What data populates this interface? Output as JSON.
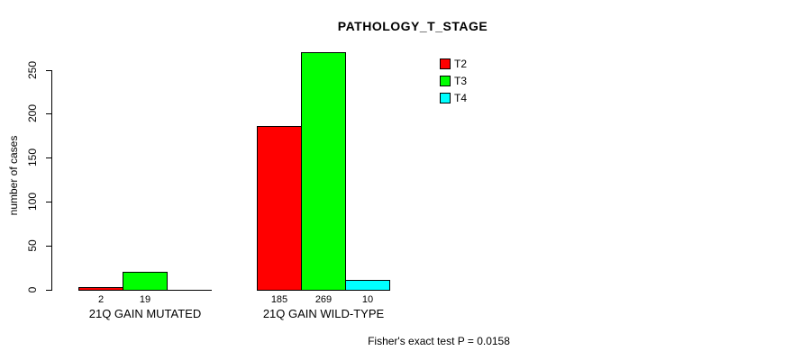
{
  "chart_data": {
    "type": "bar",
    "title": "PATHOLOGY_T_STAGE",
    "xlabel": "",
    "ylabel": "number of cases",
    "ylim": [
      0,
      269
    ],
    "yticks": [
      0,
      50,
      100,
      150,
      200,
      250
    ],
    "grid": false,
    "categories": [
      "21Q GAIN MUTATED",
      "21Q GAIN WILD-TYPE"
    ],
    "series": [
      {
        "name": "T2",
        "color": "#ff0000",
        "values": [
          2,
          185
        ]
      },
      {
        "name": "T3",
        "color": "#00ff00",
        "values": [
          19,
          269
        ]
      },
      {
        "name": "T4",
        "color": "#00ffff",
        "values": [
          0,
          10
        ]
      }
    ],
    "bar_value_labels": [
      [
        "2",
        "19",
        ""
      ],
      [
        "185",
        "269",
        "10"
      ]
    ],
    "legend": [
      "T2",
      "T3",
      "T4"
    ],
    "legend_position": "top-right",
    "annotation": "Fisher's exact test P = 0.0158",
    "axis_color": "#000000",
    "background_color": "#ffffff"
  }
}
